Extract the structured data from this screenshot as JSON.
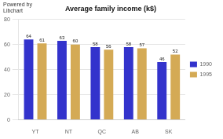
{
  "chart_data": {
    "type": "bar",
    "title": "Average family income (k$)",
    "annotations": [
      "Powered by",
      "Libchart"
    ],
    "categories": [
      "YT",
      "NT",
      "QC",
      "AB",
      "SK"
    ],
    "series": [
      {
        "name": "1990",
        "color": "#3333cc",
        "values": [
          64,
          63,
          58,
          58,
          46
        ]
      },
      {
        "name": "1995",
        "color": "#d4aa55",
        "values": [
          61,
          60,
          56,
          57,
          52
        ]
      }
    ],
    "ylim": [
      0,
      80
    ],
    "yticks": [
      0,
      20,
      40,
      60,
      80
    ],
    "grid": true,
    "legend": "right",
    "data_labels": true
  }
}
